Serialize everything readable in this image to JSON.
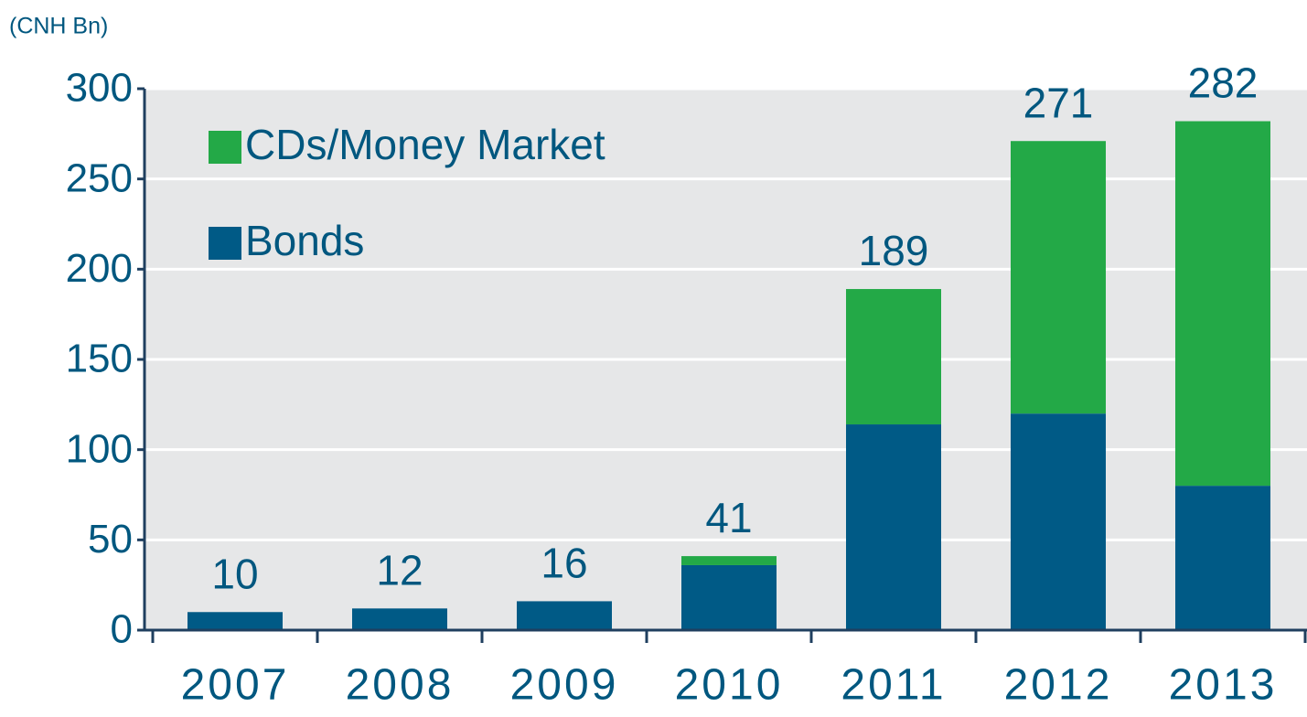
{
  "chart_data": {
    "type": "stacked_bar",
    "unit_label": "(CNH Bn)",
    "categories": [
      "2007",
      "2008",
      "2009",
      "2010",
      "2011",
      "2012",
      "2013"
    ],
    "series": [
      {
        "name": "Bonds",
        "color": "#005a86",
        "values": [
          10,
          12,
          16,
          36,
          114,
          120,
          80
        ]
      },
      {
        "name": "CDs/Money Market",
        "color": "#23a947",
        "values": [
          0,
          0,
          0,
          5,
          75,
          151,
          202
        ]
      }
    ],
    "total_labels": [
      10,
      12,
      16,
      41,
      189,
      271,
      282
    ],
    "ylim": [
      0,
      300
    ],
    "yticks": [
      0,
      50,
      100,
      150,
      200,
      250,
      300
    ],
    "grid": true
  }
}
